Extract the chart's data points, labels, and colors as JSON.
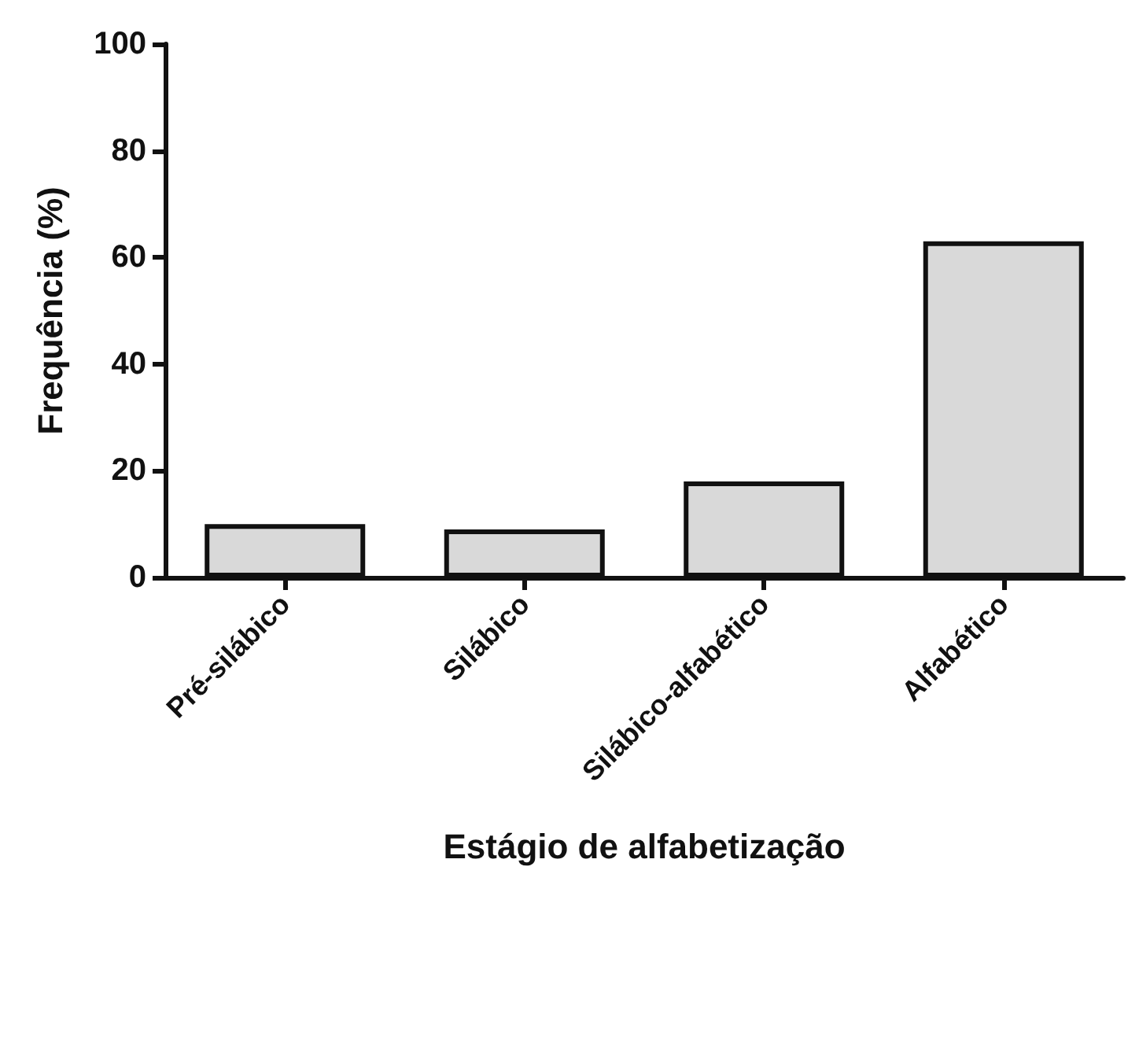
{
  "chart_data": {
    "type": "bar",
    "xlabel": "Estágio de alfabetização",
    "ylabel": "Frequência (%)",
    "categories": [
      "Pré-silábico",
      "Silábico",
      "Silábico-alfabético",
      "Alfabético"
    ],
    "values": [
      10,
      9,
      18,
      63
    ],
    "color": "#d9d9d9",
    "ylim": [
      0,
      100
    ],
    "yticks": [
      0,
      20,
      40,
      60,
      80,
      100
    ],
    "grid": false
  }
}
